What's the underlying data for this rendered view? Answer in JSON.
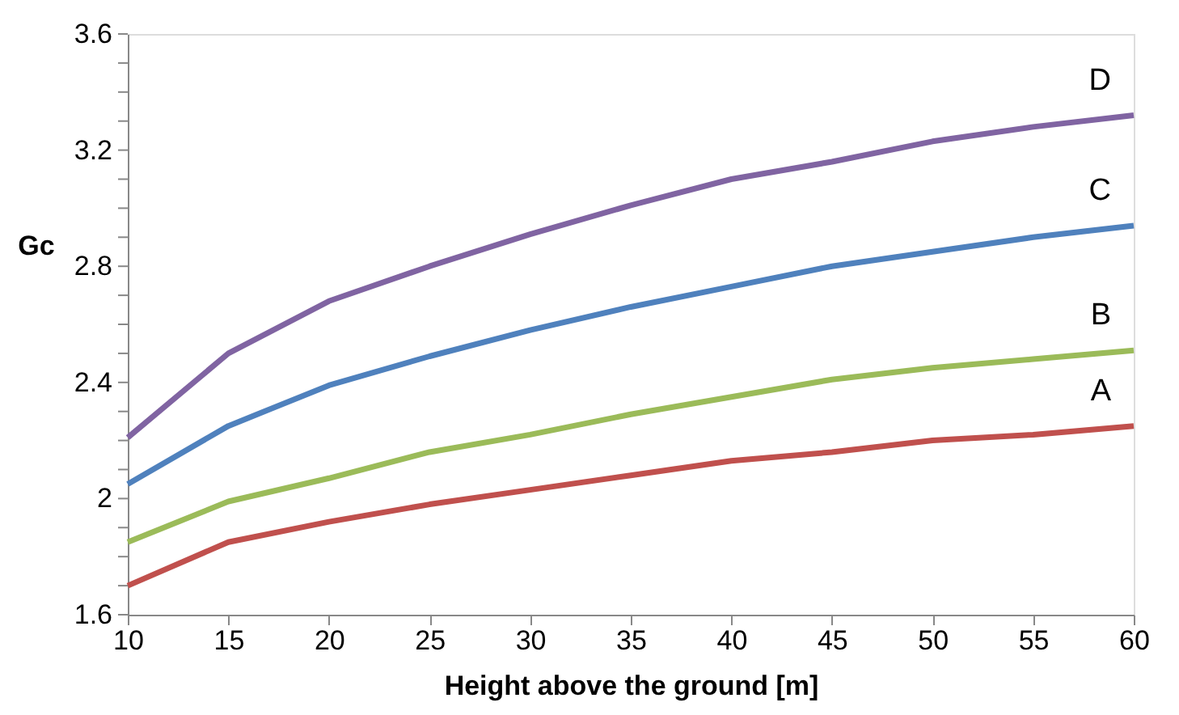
{
  "chart_data": {
    "type": "line",
    "xlabel": "Height above the ground [m]",
    "ylabel": "Gc",
    "x": [
      10,
      15,
      20,
      25,
      30,
      35,
      40,
      45,
      50,
      55,
      60
    ],
    "series": [
      {
        "name": "A",
        "color": "#c0504d",
        "values": [
          1.7,
          1.85,
          1.92,
          1.98,
          2.03,
          2.08,
          2.13,
          2.16,
          2.2,
          2.22,
          2.25
        ]
      },
      {
        "name": "B",
        "color": "#9bbb59",
        "values": [
          1.85,
          1.99,
          2.07,
          2.16,
          2.22,
          2.29,
          2.35,
          2.41,
          2.45,
          2.48,
          2.51
        ]
      },
      {
        "name": "C",
        "color": "#4f81bd",
        "values": [
          2.05,
          2.25,
          2.39,
          2.49,
          2.58,
          2.66,
          2.73,
          2.8,
          2.85,
          2.9,
          2.94
        ]
      },
      {
        "name": "D",
        "color": "#8064a2",
        "values": [
          2.21,
          2.5,
          2.68,
          2.8,
          2.91,
          3.01,
          3.1,
          3.16,
          3.23,
          3.28,
          3.32
        ]
      }
    ],
    "xlim": [
      10,
      60
    ],
    "xticks": [
      10,
      15,
      20,
      25,
      30,
      35,
      40,
      45,
      50,
      55,
      60
    ],
    "ylim": [
      1.6,
      3.6
    ],
    "yticks": [
      1.6,
      {
        "value": 1.7,
        "label": null
      },
      {
        "value": 1.8,
        "label": null
      },
      {
        "value": 1.9,
        "label": null
      },
      2,
      {
        "value": 2.1,
        "label": null
      },
      {
        "value": 2.2,
        "label": null
      },
      {
        "value": 2.3,
        "label": null
      },
      2.4,
      {
        "value": 2.5,
        "label": null
      },
      {
        "value": 2.6,
        "label": null
      },
      {
        "value": 2.7,
        "label": null
      },
      2.8,
      {
        "value": 2.9,
        "label": null
      },
      {
        "value": 3.0,
        "label": null
      },
      {
        "value": 3.1,
        "label": null
      },
      3.2,
      {
        "value": 3.3,
        "label": null
      },
      {
        "value": 3.4,
        "label": null
      },
      {
        "value": 3.5,
        "label": null
      },
      3.6
    ],
    "grid": false,
    "legend": false,
    "marker": "none",
    "line_style": "solid"
  }
}
